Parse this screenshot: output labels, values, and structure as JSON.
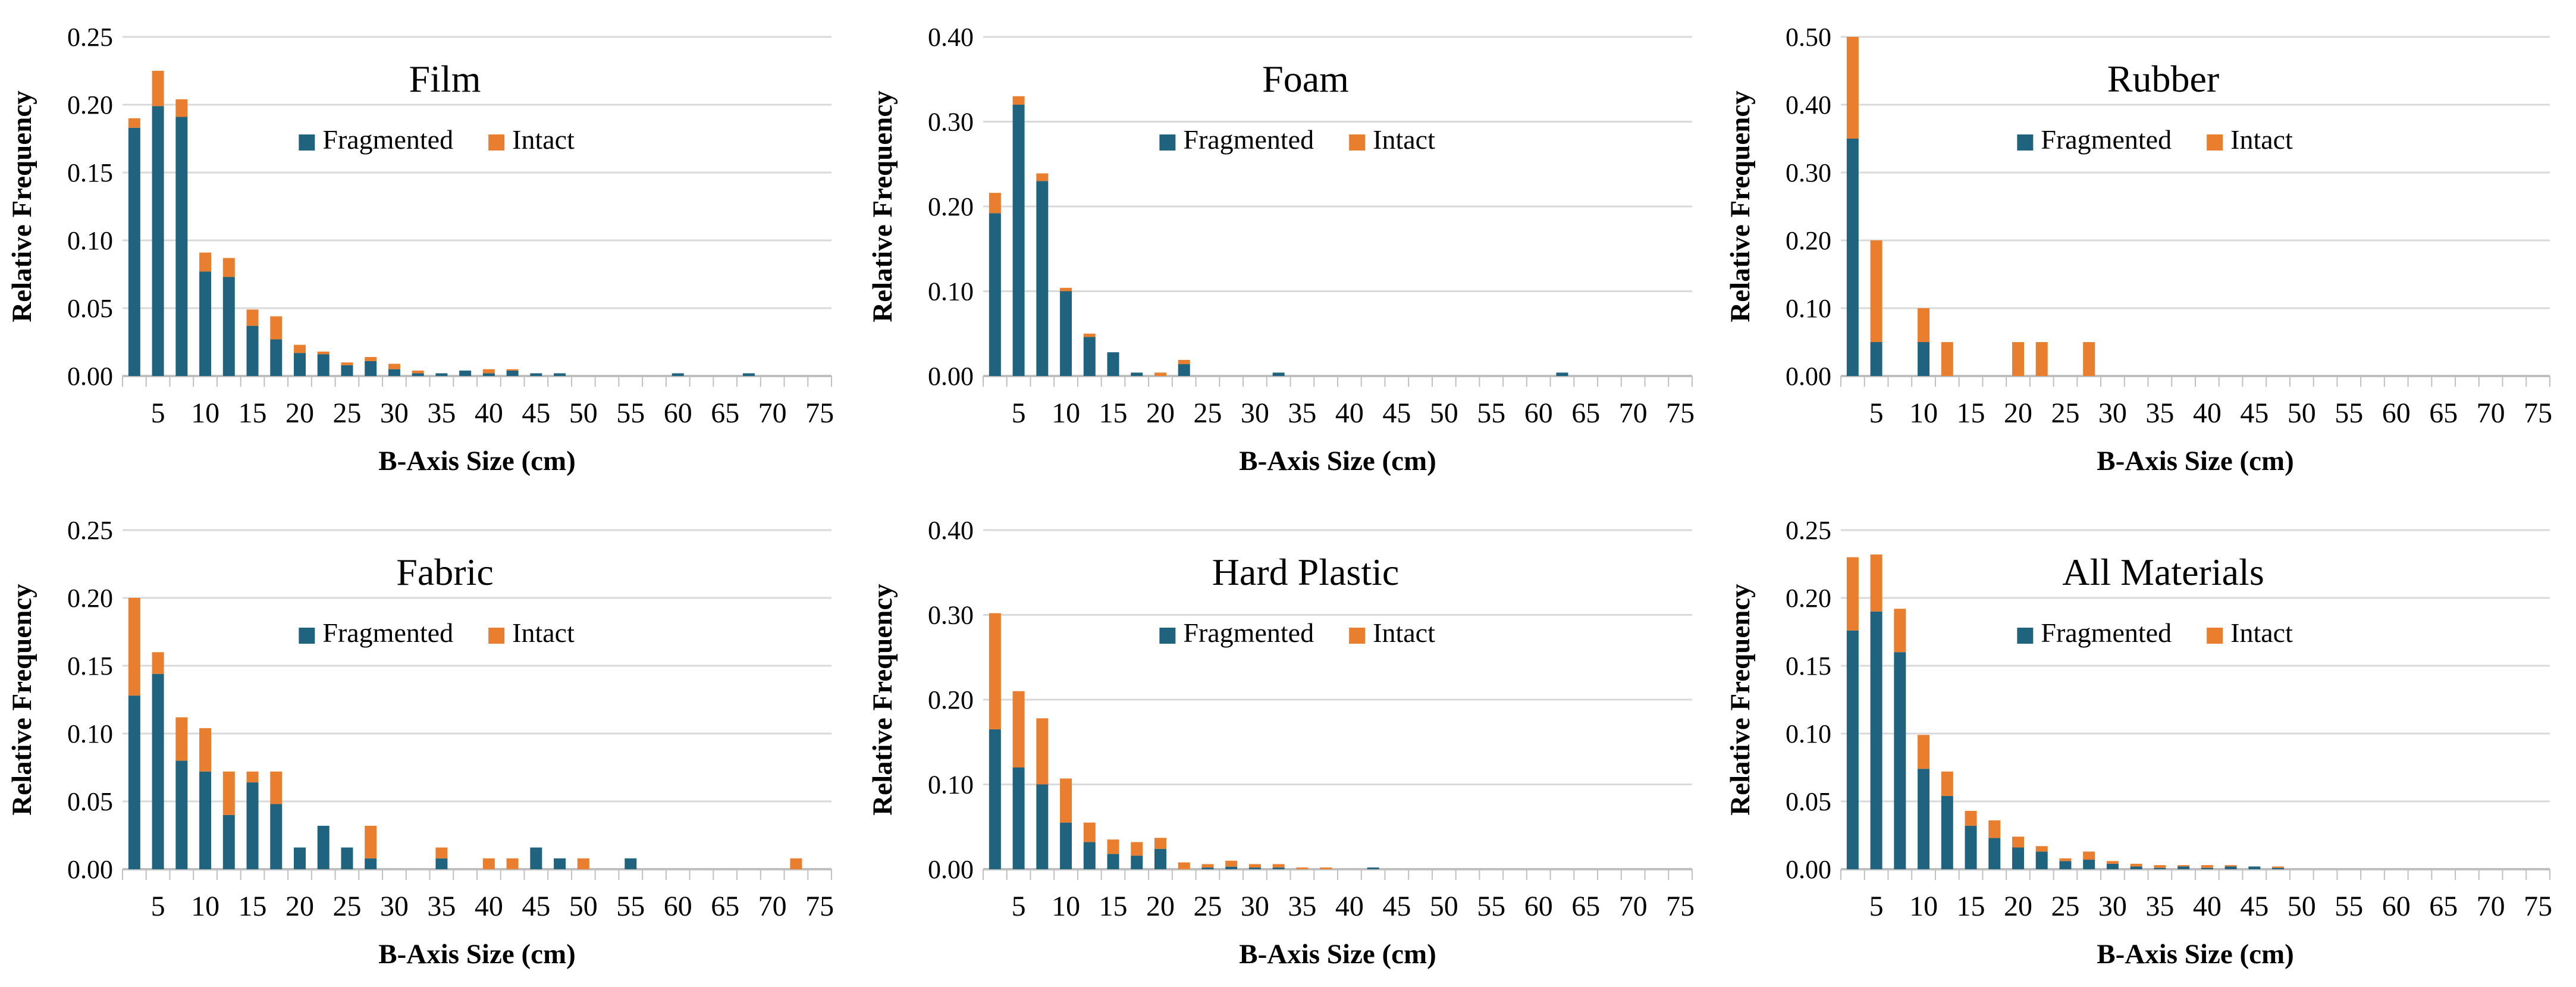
{
  "figure": {
    "ylabel": "Relative Frequency",
    "xlabel": "B-Axis Size (cm)",
    "legend": {
      "fragmented": "Fragmented",
      "intact": "Intact"
    },
    "colors": {
      "fragmented": "#20637F",
      "intact": "#E87E2E",
      "gridline": "#D9D9D9",
      "axis": "#BFBFBF",
      "text": "#000000",
      "background": "#FFFFFF"
    },
    "x_tick_labels": [
      "5",
      "10",
      "15",
      "20",
      "25",
      "30",
      "35",
      "40",
      "45",
      "50",
      "55",
      "60",
      "65",
      "70",
      "75"
    ],
    "bin_width_cm": 2.5,
    "x_range": [
      1.25,
      76.25
    ],
    "grid": true,
    "legend_position": "inside-top-center"
  },
  "chart_data": [
    {
      "type": "bar",
      "stacked": true,
      "title": "Film",
      "xlabel": "B-Axis Size (cm)",
      "ylabel": "Relative Frequency",
      "ylim": [
        0,
        0.25
      ],
      "ytick_step": 0.05,
      "x": [
        2.5,
        5,
        7.5,
        10,
        12.5,
        15,
        17.5,
        20,
        22.5,
        25,
        27.5,
        30,
        32.5,
        35,
        37.5,
        40,
        42.5,
        45,
        47.5,
        60,
        67.5
      ],
      "series": [
        {
          "name": "Fragmented",
          "values": [
            0.183,
            0.199,
            0.191,
            0.077,
            0.073,
            0.037,
            0.027,
            0.017,
            0.016,
            0.008,
            0.011,
            0.005,
            0.002,
            0.002,
            0.004,
            0.002,
            0.004,
            0.002,
            0.002,
            0.002,
            0.002
          ]
        },
        {
          "name": "Intact",
          "values": [
            0.007,
            0.026,
            0.013,
            0.014,
            0.014,
            0.012,
            0.017,
            0.006,
            0.002,
            0.002,
            0.003,
            0.004,
            0.002,
            0,
            0,
            0.003,
            0.001,
            0,
            0,
            0,
            0
          ]
        }
      ]
    },
    {
      "type": "bar",
      "stacked": true,
      "title": "Foam",
      "xlabel": "B-Axis Size (cm)",
      "ylabel": "Relative Frequency",
      "ylim": [
        0,
        0.4
      ],
      "ytick_step": 0.1,
      "x": [
        2.5,
        5,
        7.5,
        10,
        12.5,
        15,
        17.5,
        20,
        22.5,
        32.5,
        62.5
      ],
      "series": [
        {
          "name": "Fragmented",
          "values": [
            0.192,
            0.32,
            0.23,
            0.1,
            0.046,
            0.028,
            0.004,
            0,
            0.014,
            0.004,
            0.004
          ]
        },
        {
          "name": "Intact",
          "values": [
            0.024,
            0.01,
            0.009,
            0.004,
            0.004,
            0,
            0,
            0.004,
            0.005,
            0,
            0
          ]
        }
      ]
    },
    {
      "type": "bar",
      "stacked": true,
      "title": "Rubber",
      "xlabel": "B-Axis Size (cm)",
      "ylabel": "Relative Frequency",
      "ylim": [
        0,
        0.5
      ],
      "ytick_step": 0.1,
      "x": [
        2.5,
        5,
        10,
        12.5,
        20,
        22.5,
        27.5
      ],
      "series": [
        {
          "name": "Fragmented",
          "values": [
            0.35,
            0.05,
            0.05,
            0,
            0,
            0,
            0
          ]
        },
        {
          "name": "Intact",
          "values": [
            0.15,
            0.15,
            0.05,
            0.05,
            0.05,
            0.05,
            0.05
          ]
        }
      ]
    },
    {
      "type": "bar",
      "stacked": true,
      "title": "Fabric",
      "xlabel": "B-Axis Size (cm)",
      "ylabel": "Relative Frequency",
      "ylim": [
        0,
        0.25
      ],
      "ytick_step": 0.05,
      "x": [
        2.5,
        5,
        7.5,
        10,
        12.5,
        15,
        17.5,
        20,
        22.5,
        25,
        27.5,
        35,
        40,
        42.5,
        45,
        47.5,
        50,
        55,
        72.5
      ],
      "series": [
        {
          "name": "Fragmented",
          "values": [
            0.128,
            0.144,
            0.08,
            0.072,
            0.04,
            0.064,
            0.048,
            0.016,
            0.032,
            0.016,
            0.008,
            0.008,
            0,
            0,
            0.016,
            0.008,
            0,
            0.008,
            0
          ]
        },
        {
          "name": "Intact",
          "values": [
            0.072,
            0.016,
            0.032,
            0.032,
            0.032,
            0.008,
            0.024,
            0,
            0,
            0,
            0.024,
            0.008,
            0.008,
            0.008,
            0,
            0,
            0.008,
            0,
            0.008
          ]
        }
      ]
    },
    {
      "type": "bar",
      "stacked": true,
      "title": "Hard Plastic",
      "xlabel": "B-Axis Size (cm)",
      "ylabel": "Relative Frequency",
      "ylim": [
        0,
        0.4
      ],
      "ytick_step": 0.1,
      "x": [
        2.5,
        5,
        7.5,
        10,
        12.5,
        15,
        17.5,
        20,
        22.5,
        25,
        27.5,
        30,
        32.5,
        35,
        37.5,
        42.5
      ],
      "series": [
        {
          "name": "Fragmented",
          "values": [
            0.165,
            0.12,
            0.1,
            0.055,
            0.032,
            0.018,
            0.016,
            0.024,
            0,
            0.002,
            0.003,
            0.002,
            0.002,
            0,
            0,
            0.002
          ]
        },
        {
          "name": "Intact",
          "values": [
            0.137,
            0.09,
            0.078,
            0.052,
            0.023,
            0.017,
            0.016,
            0.013,
            0.008,
            0.004,
            0.007,
            0.004,
            0.004,
            0.002,
            0.002,
            0
          ]
        }
      ]
    },
    {
      "type": "bar",
      "stacked": true,
      "title": "All Materials",
      "xlabel": "B-Axis Size (cm)",
      "ylabel": "Relative Frequency",
      "ylim": [
        0,
        0.25
      ],
      "ytick_step": 0.05,
      "x": [
        2.5,
        5,
        7.5,
        10,
        12.5,
        15,
        17.5,
        20,
        22.5,
        25,
        27.5,
        30,
        32.5,
        35,
        37.5,
        40,
        42.5,
        45,
        47.5
      ],
      "series": [
        {
          "name": "Fragmented",
          "values": [
            0.176,
            0.19,
            0.16,
            0.074,
            0.054,
            0.032,
            0.023,
            0.016,
            0.013,
            0.006,
            0.007,
            0.004,
            0.002,
            0.001,
            0.002,
            0.001,
            0.002,
            0.002,
            0.001
          ]
        },
        {
          "name": "Intact",
          "values": [
            0.054,
            0.042,
            0.032,
            0.025,
            0.018,
            0.011,
            0.013,
            0.008,
            0.004,
            0.002,
            0.006,
            0.002,
            0.002,
            0.002,
            0.001,
            0.002,
            0.001,
            0,
            0.001
          ]
        }
      ]
    }
  ]
}
